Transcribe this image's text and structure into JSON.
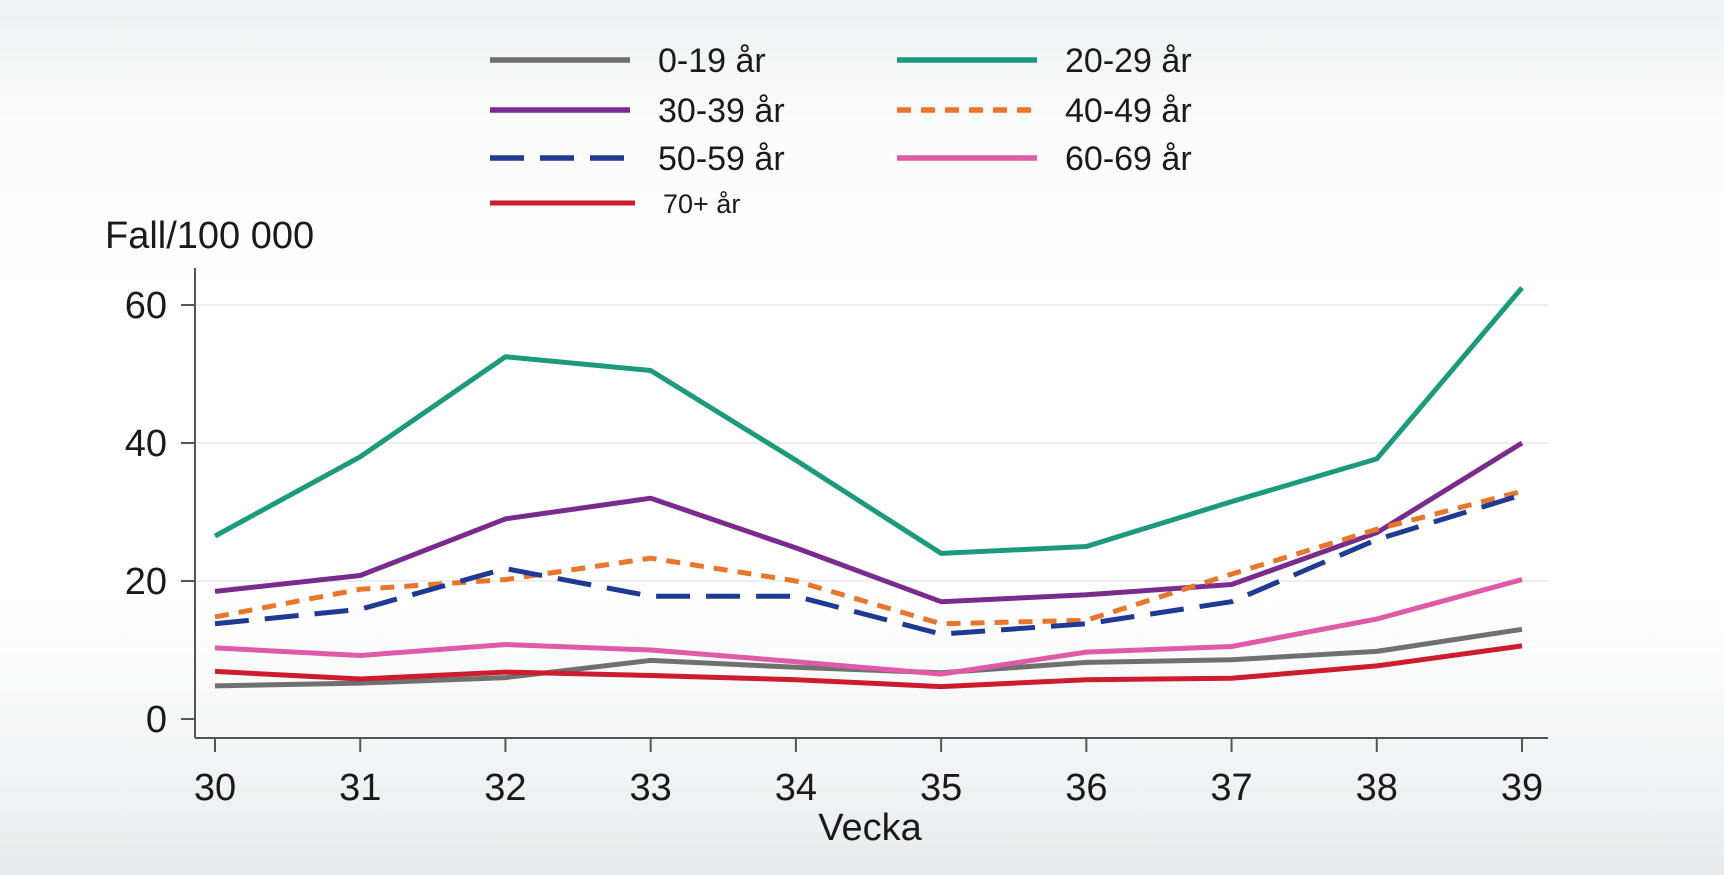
{
  "chart_data": {
    "type": "line",
    "xlabel": "Vecka",
    "ylabel": "Fall/100 000",
    "x": [
      30,
      31,
      32,
      33,
      34,
      35,
      36,
      37,
      38,
      39
    ],
    "xticks": [
      "30",
      "31",
      "32",
      "33",
      "34",
      "35",
      "36",
      "37",
      "38",
      "39"
    ],
    "yticks": [
      "0",
      "20",
      "40",
      "60"
    ],
    "ylim": [
      0,
      62
    ],
    "grid": true,
    "legend_position": "top",
    "series": [
      {
        "name": "0-19 år",
        "color": "#707070",
        "dash": "solid",
        "values": [
          4.8,
          5.2,
          6.0,
          8.5,
          7.5,
          6.7,
          8.2,
          8.6,
          9.8,
          13.0
        ]
      },
      {
        "name": "20-29 år",
        "color": "#1d9a7e",
        "dash": "solid",
        "values": [
          26.5,
          38.0,
          52.5,
          50.5,
          37.5,
          24.0,
          25.0,
          31.5,
          37.7,
          62.5
        ]
      },
      {
        "name": "30-39 år",
        "color": "#7a2c8e",
        "dash": "solid",
        "values": [
          18.5,
          20.8,
          29.0,
          32.0,
          24.8,
          17.0,
          18.0,
          19.5,
          27.0,
          40.0
        ]
      },
      {
        "name": "40-49 år",
        "color": "#e8762b",
        "dash": "short",
        "values": [
          14.8,
          18.8,
          20.2,
          23.3,
          20.0,
          13.8,
          14.3,
          21.0,
          27.5,
          33.0
        ]
      },
      {
        "name": "50-59 år",
        "color": "#1f3a93",
        "dash": "long",
        "values": [
          13.8,
          15.9,
          21.8,
          17.8,
          17.8,
          12.3,
          13.8,
          17.0,
          26.0,
          32.5
        ]
      },
      {
        "name": "60-69 år",
        "color": "#e05aa8",
        "dash": "solid",
        "values": [
          10.3,
          9.2,
          10.8,
          10.0,
          8.3,
          6.5,
          9.7,
          10.5,
          14.5,
          20.2
        ]
      },
      {
        "name": "70+ år",
        "color": "#cc1c2e",
        "dash": "solid",
        "values": [
          6.9,
          5.8,
          6.8,
          6.3,
          5.7,
          4.7,
          5.7,
          5.9,
          7.7,
          10.6
        ]
      }
    ]
  }
}
